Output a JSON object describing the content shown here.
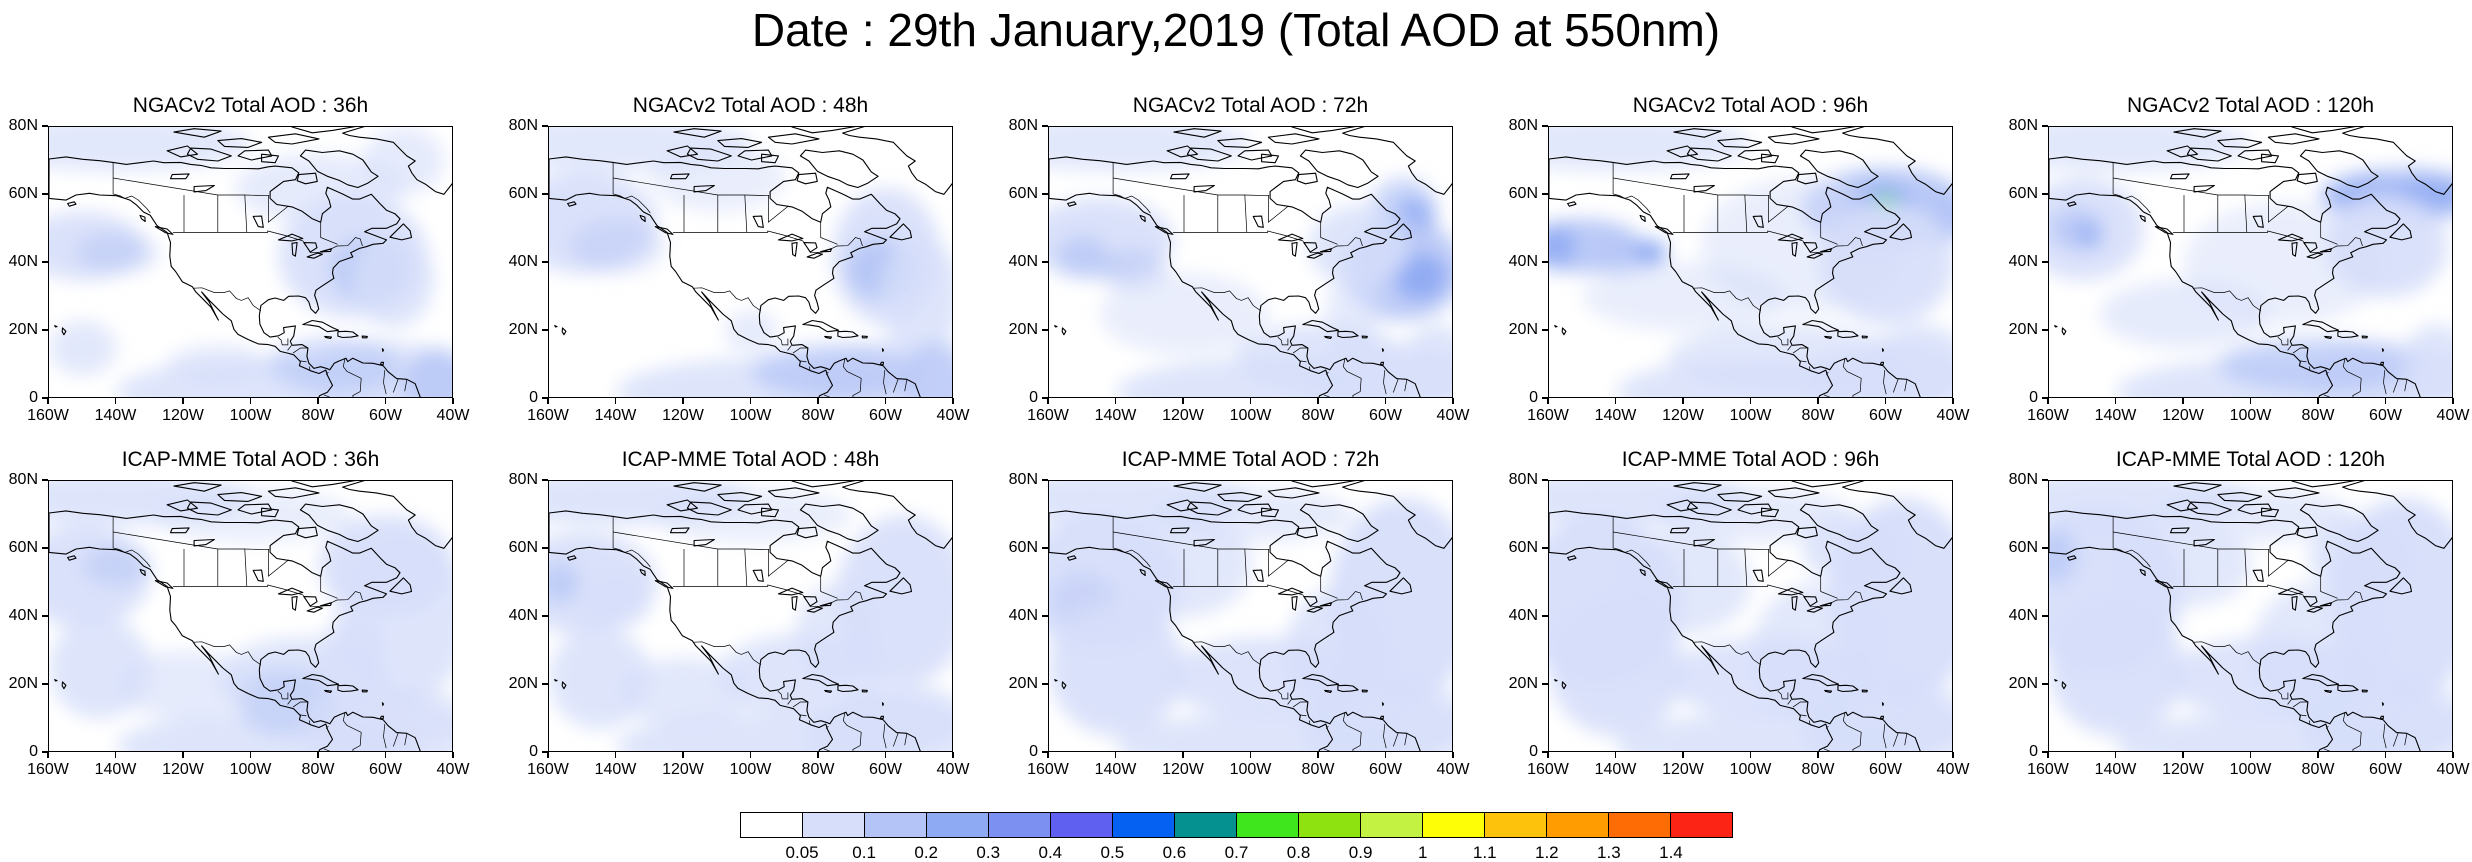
{
  "title": "Date : 29th January,2019 (Total AOD at 550nm)",
  "rows": [
    {
      "model": "NGACv2",
      "panels": [
        {
          "title": "NGACv2 Total AOD : 36h",
          "lead": "36h"
        },
        {
          "title": "NGACv2 Total AOD : 48h",
          "lead": "48h"
        },
        {
          "title": "NGACv2 Total AOD : 72h",
          "lead": "72h"
        },
        {
          "title": "NGACv2 Total AOD : 96h",
          "lead": "96h"
        },
        {
          "title": "NGACv2 Total AOD : 120h",
          "lead": "120h"
        }
      ]
    },
    {
      "model": "ICAP-MME",
      "panels": [
        {
          "title": "ICAP-MME Total AOD : 36h",
          "lead": "36h"
        },
        {
          "title": "ICAP-MME Total AOD : 48h",
          "lead": "48h"
        },
        {
          "title": "ICAP-MME Total AOD : 72h",
          "lead": "72h"
        },
        {
          "title": "ICAP-MME Total AOD : 96h",
          "lead": "96h"
        },
        {
          "title": "ICAP-MME Total AOD : 120h",
          "lead": "120h"
        }
      ]
    }
  ],
  "axes": {
    "lon_labels": [
      "160W",
      "140W",
      "120W",
      "100W",
      "80W",
      "60W",
      "40W"
    ],
    "lat_labels": [
      "0",
      "20N",
      "40N",
      "60N",
      "80N"
    ],
    "lon_range": [
      -160,
      -40
    ],
    "lat_range": [
      0,
      80
    ]
  },
  "colorbar": {
    "colors": [
      "#ffffff",
      "#d6defa",
      "#b4c4f6",
      "#8eaaf3",
      "#7b90f0",
      "#5f5ff0",
      "#0561f2",
      "#05918f",
      "#3fe51d",
      "#8de20f",
      "#c4f243",
      "#feff06",
      "#fdc20c",
      "#fe9c02",
      "#fe6c06",
      "#fc2414"
    ],
    "labels": [
      "0.05",
      "0.1",
      "0.2",
      "0.3",
      "0.4",
      "0.5",
      "0.6",
      "0.7",
      "0.8",
      "0.9",
      "1",
      "1.1",
      "1.2",
      "1.3",
      "1.4"
    ]
  },
  "regions": [
    "Pacific Ocean",
    "Atlantic Ocean",
    "North America",
    "Greenland",
    "Gulf of Mexico",
    "Caribbean",
    "Hudson Bay",
    "Canadian Arctic Archipelago"
  ]
}
